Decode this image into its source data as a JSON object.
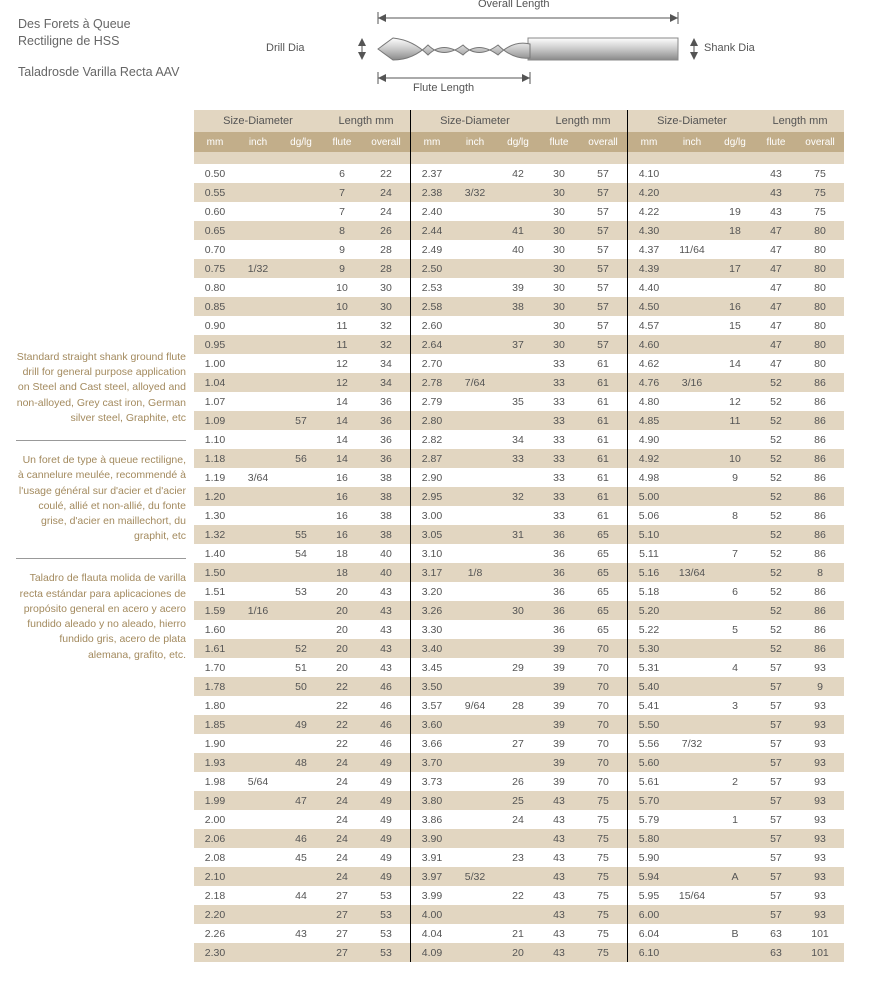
{
  "colors": {
    "lightBand": "#e2d6c1",
    "darkBand": "#c2ae8a",
    "text": "#545454",
    "sideText": "#a38a5e",
    "headerText": "#ffffff"
  },
  "titles": {
    "fr": "Des Forets à Queue Rectiligne de HSS",
    "es": "Taladrosde Varilla Recta AAV"
  },
  "diagram": {
    "drillDia": "Drill Dia",
    "fluteLength": "Flute Length",
    "overallLength": "Overall Length",
    "shankDia": "Shank Dia"
  },
  "sidebar": {
    "en": "Standard straight shank ground flute drill for general purpose application on Steel and Cast steel, alloyed and non-alloyed, Grey cast iron, German silver steel, Graphite, etc",
    "fr": "Un foret de type à queue rectiligne, à cannelure meulée, recommendé à l'usage général sur d'acier et d'acier coulé, allié et non-allié, du fonte grise, d'acier en maillechort, du graphit, etc",
    "es": "Taladro de flauta molida de varilla recta estándar para aplicaciones de propósito general en acero y acero fundido aleado y no aleado, hierro fundido gris, acero de plata alemana, grafito, etc."
  },
  "headers": {
    "size": "Size-Diameter",
    "len": "Length mm",
    "mm": "mm",
    "inch": "inch",
    "dg": "dg/lg",
    "flute": "flute",
    "overall": "overall"
  },
  "blocks": [
    {
      "rows": [
        [
          "0.50",
          "",
          "",
          "6",
          "22"
        ],
        [
          "0.55",
          "",
          "",
          "7",
          "24"
        ],
        [
          "0.60",
          "",
          "",
          "7",
          "24"
        ],
        [
          "0.65",
          "",
          "",
          "8",
          "26"
        ],
        [
          "0.70",
          "",
          "",
          "9",
          "28"
        ],
        [
          "0.75",
          "1/32",
          "",
          "9",
          "28"
        ],
        [
          "0.80",
          "",
          "",
          "10",
          "30"
        ],
        [
          "0.85",
          "",
          "",
          "10",
          "30"
        ],
        [
          "0.90",
          "",
          "",
          "11",
          "32"
        ],
        [
          "0.95",
          "",
          "",
          "11",
          "32"
        ],
        [
          "1.00",
          "",
          "",
          "12",
          "34"
        ],
        [
          "1.04",
          "",
          "",
          "12",
          "34"
        ],
        [
          "1.07",
          "",
          "",
          "14",
          "36"
        ],
        [
          "1.09",
          "",
          "57",
          "14",
          "36"
        ],
        [
          "1.10",
          "",
          "",
          "14",
          "36"
        ],
        [
          "1.18",
          "",
          "56",
          "14",
          "36"
        ],
        [
          "1.19",
          "3/64",
          "",
          "16",
          "38"
        ],
        [
          "1.20",
          "",
          "",
          "16",
          "38"
        ],
        [
          "1.30",
          "",
          "",
          "16",
          "38"
        ],
        [
          "1.32",
          "",
          "55",
          "16",
          "38"
        ],
        [
          "1.40",
          "",
          "54",
          "18",
          "40"
        ],
        [
          "1.50",
          "",
          "",
          "18",
          "40"
        ],
        [
          "1.51",
          "",
          "53",
          "20",
          "43"
        ],
        [
          "1.59",
          "1/16",
          "",
          "20",
          "43"
        ],
        [
          "1.60",
          "",
          "",
          "20",
          "43"
        ],
        [
          "1.61",
          "",
          "52",
          "20",
          "43"
        ],
        [
          "1.70",
          "",
          "51",
          "20",
          "43"
        ],
        [
          "1.78",
          "",
          "50",
          "22",
          "46"
        ],
        [
          "1.80",
          "",
          "",
          "22",
          "46"
        ],
        [
          "1.85",
          "",
          "49",
          "22",
          "46"
        ],
        [
          "1.90",
          "",
          "",
          "22",
          "46"
        ],
        [
          "1.93",
          "",
          "48",
          "24",
          "49"
        ],
        [
          "1.98",
          "5/64",
          "",
          "24",
          "49"
        ],
        [
          "1.99",
          "",
          "47",
          "24",
          "49"
        ],
        [
          "2.00",
          "",
          "",
          "24",
          "49"
        ],
        [
          "2.06",
          "",
          "46",
          "24",
          "49"
        ],
        [
          "2.08",
          "",
          "45",
          "24",
          "49"
        ],
        [
          "2.10",
          "",
          "",
          "24",
          "49"
        ],
        [
          "2.18",
          "",
          "44",
          "27",
          "53"
        ],
        [
          "2.20",
          "",
          "",
          "27",
          "53"
        ],
        [
          "2.26",
          "",
          "43",
          "27",
          "53"
        ],
        [
          "2.30",
          "",
          "",
          "27",
          "53"
        ]
      ]
    },
    {
      "rows": [
        [
          "2.37",
          "",
          "42",
          "30",
          "57"
        ],
        [
          "2.38",
          "3/32",
          "",
          "30",
          "57"
        ],
        [
          "2.40",
          "",
          "",
          "30",
          "57"
        ],
        [
          "2.44",
          "",
          "41",
          "30",
          "57"
        ],
        [
          "2.49",
          "",
          "40",
          "30",
          "57"
        ],
        [
          "2.50",
          "",
          "",
          "30",
          "57"
        ],
        [
          "2.53",
          "",
          "39",
          "30",
          "57"
        ],
        [
          "2.58",
          "",
          "38",
          "30",
          "57"
        ],
        [
          "2.60",
          "",
          "",
          "30",
          "57"
        ],
        [
          "2.64",
          "",
          "37",
          "30",
          "57"
        ],
        [
          "2.70",
          "",
          "",
          "33",
          "61"
        ],
        [
          "2.78",
          "7/64",
          "",
          "33",
          "61"
        ],
        [
          "2.79",
          "",
          "35",
          "33",
          "61"
        ],
        [
          "2.80",
          "",
          "",
          "33",
          "61"
        ],
        [
          "2.82",
          "",
          "34",
          "33",
          "61"
        ],
        [
          "2.87",
          "",
          "33",
          "33",
          "61"
        ],
        [
          "2.90",
          "",
          "",
          "33",
          "61"
        ],
        [
          "2.95",
          "",
          "32",
          "33",
          "61"
        ],
        [
          "3.00",
          "",
          "",
          "33",
          "61"
        ],
        [
          "3.05",
          "",
          "31",
          "36",
          "65"
        ],
        [
          "3.10",
          "",
          "",
          "36",
          "65"
        ],
        [
          "3.17",
          "1/8",
          "",
          "36",
          "65"
        ],
        [
          "3.20",
          "",
          "",
          "36",
          "65"
        ],
        [
          "3.26",
          "",
          "30",
          "36",
          "65"
        ],
        [
          "3.30",
          "",
          "",
          "36",
          "65"
        ],
        [
          "3.40",
          "",
          "",
          "39",
          "70"
        ],
        [
          "3.45",
          "",
          "29",
          "39",
          "70"
        ],
        [
          "3.50",
          "",
          "",
          "39",
          "70"
        ],
        [
          "3.57",
          "9/64",
          "28",
          "39",
          "70"
        ],
        [
          "3.60",
          "",
          "",
          "39",
          "70"
        ],
        [
          "3.66",
          "",
          "27",
          "39",
          "70"
        ],
        [
          "3.70",
          "",
          "",
          "39",
          "70"
        ],
        [
          "3.73",
          "",
          "26",
          "39",
          "70"
        ],
        [
          "3.80",
          "",
          "25",
          "43",
          "75"
        ],
        [
          "3.86",
          "",
          "24",
          "43",
          "75"
        ],
        [
          "3.90",
          "",
          "",
          "43",
          "75"
        ],
        [
          "3.91",
          "",
          "23",
          "43",
          "75"
        ],
        [
          "3.97",
          "5/32",
          "",
          "43",
          "75"
        ],
        [
          "3.99",
          "",
          "22",
          "43",
          "75"
        ],
        [
          "4.00",
          "",
          "",
          "43",
          "75"
        ],
        [
          "4.04",
          "",
          "21",
          "43",
          "75"
        ],
        [
          "4.09",
          "",
          "20",
          "43",
          "75"
        ]
      ]
    },
    {
      "rows": [
        [
          "4.10",
          "",
          "",
          "43",
          "75"
        ],
        [
          "4.20",
          "",
          "",
          "43",
          "75"
        ],
        [
          "4.22",
          "",
          "19",
          "43",
          "75"
        ],
        [
          "4.30",
          "",
          "18",
          "47",
          "80"
        ],
        [
          "4.37",
          "11/64",
          "",
          "47",
          "80"
        ],
        [
          "4.39",
          "",
          "17",
          "47",
          "80"
        ],
        [
          "4.40",
          "",
          "",
          "47",
          "80"
        ],
        [
          "4.50",
          "",
          "16",
          "47",
          "80"
        ],
        [
          "4.57",
          "",
          "15",
          "47",
          "80"
        ],
        [
          "4.60",
          "",
          "",
          "47",
          "80"
        ],
        [
          "4.62",
          "",
          "14",
          "47",
          "80"
        ],
        [
          "4.76",
          "3/16",
          "",
          "52",
          "86"
        ],
        [
          "4.80",
          "",
          "12",
          "52",
          "86"
        ],
        [
          "4.85",
          "",
          "11",
          "52",
          "86"
        ],
        [
          "4.90",
          "",
          "",
          "52",
          "86"
        ],
        [
          "4.92",
          "",
          "10",
          "52",
          "86"
        ],
        [
          "4.98",
          "",
          "9",
          "52",
          "86"
        ],
        [
          "5.00",
          "",
          "",
          "52",
          "86"
        ],
        [
          "5.06",
          "",
          "8",
          "52",
          "86"
        ],
        [
          "5.10",
          "",
          "",
          "52",
          "86"
        ],
        [
          "5.11",
          "",
          "7",
          "52",
          "86"
        ],
        [
          "5.16",
          "13/64",
          "",
          "52",
          "8"
        ],
        [
          "5.18",
          "",
          "6",
          "52",
          "86"
        ],
        [
          "5.20",
          "",
          "",
          "52",
          "86"
        ],
        [
          "5.22",
          "",
          "5",
          "52",
          "86"
        ],
        [
          "5.30",
          "",
          "",
          "52",
          "86"
        ],
        [
          "5.31",
          "",
          "4",
          "57",
          "93"
        ],
        [
          "5.40",
          "",
          "",
          "57",
          "9"
        ],
        [
          "5.41",
          "",
          "3",
          "57",
          "93"
        ],
        [
          "5.50",
          "",
          "",
          "57",
          "93"
        ],
        [
          "5.56",
          "7/32",
          "",
          "57",
          "93"
        ],
        [
          "5.60",
          "",
          "",
          "57",
          "93"
        ],
        [
          "5.61",
          "",
          "2",
          "57",
          "93"
        ],
        [
          "5.70",
          "",
          "",
          "57",
          "93"
        ],
        [
          "5.79",
          "",
          "1",
          "57",
          "93"
        ],
        [
          "5.80",
          "",
          "",
          "57",
          "93"
        ],
        [
          "5.90",
          "",
          "",
          "57",
          "93"
        ],
        [
          "5.94",
          "",
          "A",
          "57",
          "93"
        ],
        [
          "5.95",
          "15/64",
          "",
          "57",
          "93"
        ],
        [
          "6.00",
          "",
          "",
          "57",
          "93"
        ],
        [
          "6.04",
          "",
          "B",
          "63",
          "101"
        ],
        [
          "6.10",
          "",
          "",
          "63",
          "101"
        ]
      ]
    }
  ]
}
